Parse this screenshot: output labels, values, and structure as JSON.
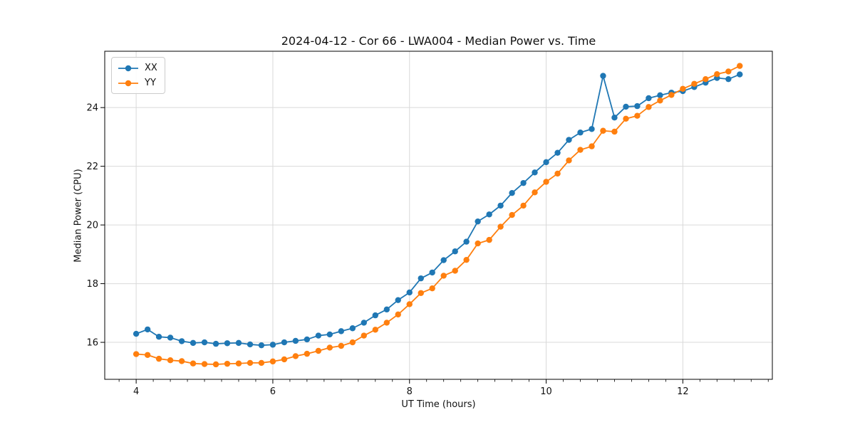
{
  "chart_data": {
    "type": "line",
    "title": "2024-04-12 - Cor 66 - LWA004 - Median Power vs. Time",
    "xlabel": "UT Time (hours)",
    "ylabel": "Median Power (CPU)",
    "xlim": [
      3.54,
      13.31
    ],
    "ylim": [
      14.74,
      25.92
    ],
    "x_ticks": [
      4,
      6,
      8,
      10,
      12
    ],
    "x_tick_labels": [
      "4",
      "6",
      "8",
      "10",
      "12"
    ],
    "x_minor_step": 0.25,
    "y_ticks": [
      16,
      18,
      20,
      22,
      24
    ],
    "y_tick_labels": [
      "16",
      "18",
      "20",
      "22",
      "24"
    ],
    "grid": true,
    "grid_color": "#d9d9d9",
    "spine_color": "#000000",
    "legend_position": "upper-left",
    "x": [
      4.0,
      4.167,
      4.333,
      4.5,
      4.667,
      4.833,
      5.0,
      5.167,
      5.333,
      5.5,
      5.667,
      5.833,
      6.0,
      6.167,
      6.333,
      6.5,
      6.667,
      6.833,
      7.0,
      7.167,
      7.333,
      7.5,
      7.667,
      7.833,
      8.0,
      8.167,
      8.333,
      8.5,
      8.667,
      8.833,
      9.0,
      9.167,
      9.333,
      9.5,
      9.667,
      9.833,
      10.0,
      10.167,
      10.333,
      10.5,
      10.667,
      10.833,
      11.0,
      11.167,
      11.333,
      11.5,
      11.667,
      11.833,
      12.0,
      12.167,
      12.333,
      12.5,
      12.667,
      12.833
    ],
    "series": [
      {
        "name": "XX",
        "color": "#1f77b4",
        "values": [
          16.29,
          16.44,
          16.19,
          16.16,
          16.04,
          15.98,
          16.0,
          15.95,
          15.97,
          15.98,
          15.93,
          15.9,
          15.92,
          16.0,
          16.05,
          16.1,
          16.23,
          16.27,
          16.38,
          16.48,
          16.67,
          16.92,
          17.12,
          17.44,
          17.7,
          18.18,
          18.38,
          18.8,
          19.1,
          19.43,
          20.12,
          20.36,
          20.66,
          21.09,
          21.43,
          21.79,
          22.14,
          22.46,
          22.9,
          23.15,
          23.27,
          25.08,
          23.66,
          24.03,
          24.05,
          24.32,
          24.42,
          24.51,
          24.56,
          24.7,
          24.85,
          25.01,
          24.97,
          25.13
        ]
      },
      {
        "name": "YY",
        "color": "#ff7f0e",
        "values": [
          15.6,
          15.57,
          15.44,
          15.39,
          15.36,
          15.28,
          15.26,
          15.25,
          15.27,
          15.28,
          15.3,
          15.3,
          15.35,
          15.42,
          15.53,
          15.61,
          15.71,
          15.82,
          15.88,
          16.0,
          16.23,
          16.43,
          16.67,
          16.95,
          17.3,
          17.68,
          17.84,
          18.27,
          18.44,
          18.81,
          19.37,
          19.49,
          19.94,
          20.34,
          20.66,
          21.11,
          21.47,
          21.75,
          22.2,
          22.56,
          22.68,
          23.21,
          23.18,
          23.62,
          23.72,
          24.02,
          24.24,
          24.43,
          24.64,
          24.81,
          24.97,
          25.14,
          25.23,
          25.42
        ]
      }
    ]
  }
}
